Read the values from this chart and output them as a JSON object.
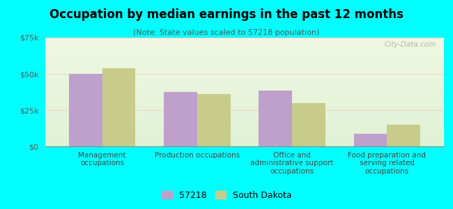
{
  "title": "Occupation by median earnings in the past 12 months",
  "subtitle": "(Note: State values scaled to 57218 population)",
  "categories": [
    "Management\noccupations",
    "Production occupations",
    "Office and\nadministrative support\noccupations",
    "Food preparation and\nserving related\noccupations"
  ],
  "values_57218": [
    50000,
    37500,
    38500,
    8500
  ],
  "values_sd": [
    54000,
    36000,
    30000,
    15000
  ],
  "color_57218": "#bf9fcc",
  "color_sd": "#c8cc8a",
  "ylim": [
    0,
    75000
  ],
  "yticks": [
    0,
    25000,
    50000,
    75000
  ],
  "ytick_labels": [
    "$0",
    "$25k",
    "$50k",
    "$75k"
  ],
  "legend_57218": "57218",
  "legend_sd": "South Dakota",
  "background_color": "#00ffff",
  "watermark": "City-Data.com"
}
